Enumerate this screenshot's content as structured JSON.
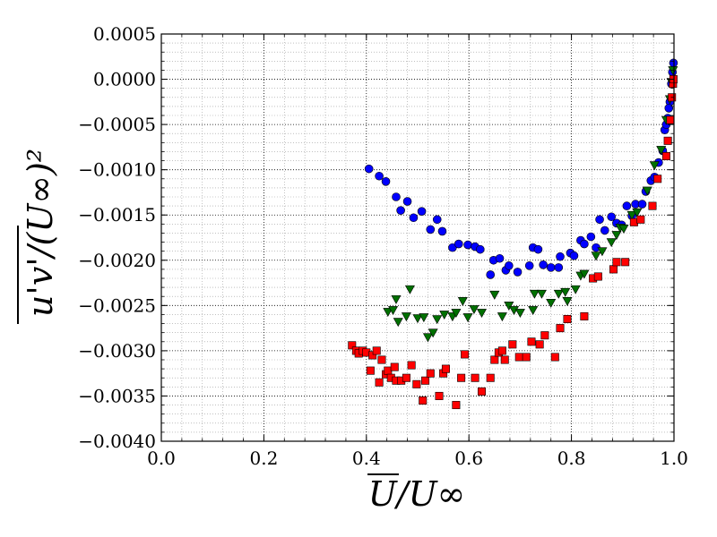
{
  "chart_data": {
    "type": "scatter",
    "xlabel": "U/U∞",
    "ylabel": "u'v'/(U∞)²",
    "xlim": [
      0.0,
      1.0
    ],
    "ylim": [
      -0.004,
      0.0005
    ],
    "x_ticks": [
      "0.0",
      "0.2",
      "0.4",
      "0.6",
      "0.8",
      "1.0"
    ],
    "y_ticks": [
      "0.0005",
      "0.0000",
      "−0.0005",
      "−0.0010",
      "−0.0015",
      "−0.0020",
      "−0.0025",
      "−0.0030",
      "−0.0035",
      "−0.0040"
    ],
    "grid": true,
    "series": [
      {
        "marker": "circle",
        "color": "#0000ff",
        "points": [
          [
            0.405,
            -0.00099
          ],
          [
            0.425,
            -0.00107
          ],
          [
            0.438,
            -0.00113
          ],
          [
            0.458,
            -0.0013
          ],
          [
            0.467,
            -0.00145
          ],
          [
            0.48,
            -0.00135
          ],
          [
            0.492,
            -0.00153
          ],
          [
            0.508,
            -0.00146
          ],
          [
            0.525,
            -0.00166
          ],
          [
            0.538,
            -0.00155
          ],
          [
            0.548,
            -0.00168
          ],
          [
            0.568,
            -0.00186
          ],
          [
            0.58,
            -0.00182
          ],
          [
            0.598,
            -0.00183
          ],
          [
            0.612,
            -0.00185
          ],
          [
            0.622,
            -0.00188
          ],
          [
            0.642,
            -0.00216
          ],
          [
            0.648,
            -0.002
          ],
          [
            0.66,
            -0.00198
          ],
          [
            0.672,
            -0.00211
          ],
          [
            0.678,
            -0.00206
          ],
          [
            0.695,
            -0.00213
          ],
          [
            0.718,
            -0.00206
          ],
          [
            0.725,
            -0.00186
          ],
          [
            0.735,
            -0.00188
          ],
          [
            0.745,
            -0.00205
          ],
          [
            0.76,
            -0.00208
          ],
          [
            0.775,
            -0.00208
          ],
          [
            0.778,
            -0.00196
          ],
          [
            0.798,
            -0.00192
          ],
          [
            0.805,
            -0.00195
          ],
          [
            0.818,
            -0.00178
          ],
          [
            0.825,
            -0.00182
          ],
          [
            0.838,
            -0.00174
          ],
          [
            0.848,
            -0.00186
          ],
          [
            0.855,
            -0.00155
          ],
          [
            0.865,
            -0.00167
          ],
          [
            0.878,
            -0.00152
          ],
          [
            0.888,
            -0.00159
          ],
          [
            0.898,
            -0.00161
          ],
          [
            0.908,
            -0.0014
          ],
          [
            0.918,
            -0.00151
          ],
          [
            0.925,
            -0.00138
          ],
          [
            0.938,
            -0.00138
          ],
          [
            0.945,
            -0.00124
          ],
          [
            0.955,
            -0.00112
          ],
          [
            0.962,
            -0.00108
          ],
          [
            0.97,
            -0.00092
          ],
          [
            0.978,
            -0.00079
          ],
          [
            0.982,
            -0.00056
          ],
          [
            0.988,
            -0.00043
          ],
          [
            0.992,
            -0.00025
          ],
          [
            0.995,
            -5e-05
          ],
          [
            0.997,
            8e-05
          ],
          [
            0.999,
            0.00018
          ],
          [
            0.99,
            -0.00032
          ],
          [
            0.985,
            -0.0005
          ]
        ]
      },
      {
        "marker": "triangle-down",
        "color": "#007000",
        "points": [
          [
            0.442,
            -0.00257
          ],
          [
            0.452,
            -0.00255
          ],
          [
            0.458,
            -0.00243
          ],
          [
            0.462,
            -0.00268
          ],
          [
            0.478,
            -0.00262
          ],
          [
            0.485,
            -0.00232
          ],
          [
            0.5,
            -0.00264
          ],
          [
            0.512,
            -0.00263
          ],
          [
            0.52,
            -0.00285
          ],
          [
            0.53,
            -0.0028
          ],
          [
            0.538,
            -0.00265
          ],
          [
            0.552,
            -0.0026
          ],
          [
            0.568,
            -0.00262
          ],
          [
            0.575,
            -0.00258
          ],
          [
            0.588,
            -0.00245
          ],
          [
            0.598,
            -0.00263
          ],
          [
            0.61,
            -0.00254
          ],
          [
            0.625,
            -0.00258
          ],
          [
            0.65,
            -0.00238
          ],
          [
            0.665,
            -0.00262
          ],
          [
            0.678,
            -0.0025
          ],
          [
            0.688,
            -0.00255
          ],
          [
            0.7,
            -0.00258
          ],
          [
            0.725,
            -0.00255
          ],
          [
            0.728,
            -0.00237
          ],
          [
            0.742,
            -0.00237
          ],
          [
            0.76,
            -0.00247
          ],
          [
            0.775,
            -0.00237
          ],
          [
            0.788,
            -0.00235
          ],
          [
            0.792,
            -0.00245
          ],
          [
            0.808,
            -0.00232
          ],
          [
            0.818,
            -0.00217
          ],
          [
            0.825,
            -0.00215
          ],
          [
            0.848,
            -0.00195
          ],
          [
            0.86,
            -0.0019
          ],
          [
            0.878,
            -0.0018
          ],
          [
            0.888,
            -0.00172
          ],
          [
            0.895,
            -0.00164
          ],
          [
            0.902,
            -0.00165
          ],
          [
            0.918,
            -0.0015
          ],
          [
            0.928,
            -0.00147
          ],
          [
            0.948,
            -0.00123
          ],
          [
            0.962,
            -0.00095
          ],
          [
            0.975,
            -0.00078
          ],
          [
            0.985,
            -0.00045
          ],
          [
            0.992,
            -0.00022
          ],
          [
            0.995,
            -3e-05
          ],
          [
            0.998,
            0.0001
          ]
        ]
      },
      {
        "marker": "square",
        "color": "#ff0000",
        "points": [
          [
            0.372,
            -0.00294
          ],
          [
            0.38,
            -0.003
          ],
          [
            0.385,
            -0.00303
          ],
          [
            0.393,
            -0.003
          ],
          [
            0.4,
            -0.00302
          ],
          [
            0.408,
            -0.00322
          ],
          [
            0.412,
            -0.00305
          ],
          [
            0.42,
            -0.003
          ],
          [
            0.425,
            -0.00335
          ],
          [
            0.43,
            -0.0031
          ],
          [
            0.438,
            -0.00326
          ],
          [
            0.442,
            -0.00322
          ],
          [
            0.448,
            -0.0033
          ],
          [
            0.455,
            -0.00318
          ],
          [
            0.458,
            -0.00333
          ],
          [
            0.468,
            -0.00333
          ],
          [
            0.478,
            -0.0033
          ],
          [
            0.488,
            -0.00316
          ],
          [
            0.498,
            -0.00337
          ],
          [
            0.51,
            -0.00355
          ],
          [
            0.515,
            -0.00333
          ],
          [
            0.525,
            -0.00325
          ],
          [
            0.542,
            -0.0035
          ],
          [
            0.55,
            -0.00325
          ],
          [
            0.555,
            -0.0032
          ],
          [
            0.575,
            -0.0036
          ],
          [
            0.585,
            -0.0033
          ],
          [
            0.592,
            -0.00304
          ],
          [
            0.612,
            -0.0033
          ],
          [
            0.625,
            -0.00345
          ],
          [
            0.642,
            -0.0033
          ],
          [
            0.65,
            -0.0031
          ],
          [
            0.658,
            -0.00302
          ],
          [
            0.665,
            -0.003
          ],
          [
            0.67,
            -0.0031
          ],
          [
            0.685,
            -0.00293
          ],
          [
            0.698,
            -0.00307
          ],
          [
            0.712,
            -0.00307
          ],
          [
            0.722,
            -0.0029
          ],
          [
            0.738,
            -0.00293
          ],
          [
            0.748,
            -0.00283
          ],
          [
            0.768,
            -0.00307
          ],
          [
            0.778,
            -0.00275
          ],
          [
            0.792,
            -0.00265
          ],
          [
            0.825,
            -0.00262
          ],
          [
            0.842,
            -0.0022
          ],
          [
            0.852,
            -0.00218
          ],
          [
            0.882,
            -0.0021
          ],
          [
            0.888,
            -0.00202
          ],
          [
            0.905,
            -0.00202
          ],
          [
            0.922,
            -0.00158
          ],
          [
            0.935,
            -0.00155
          ],
          [
            0.958,
            -0.0014
          ],
          [
            0.968,
            -0.0011
          ],
          [
            0.985,
            -0.00085
          ],
          [
            0.988,
            -0.00068
          ],
          [
            0.993,
            -0.00045
          ],
          [
            0.996,
            -0.0002
          ],
          [
            0.998,
            -5e-05
          ],
          [
            0.999,
            0.0
          ]
        ]
      }
    ]
  }
}
